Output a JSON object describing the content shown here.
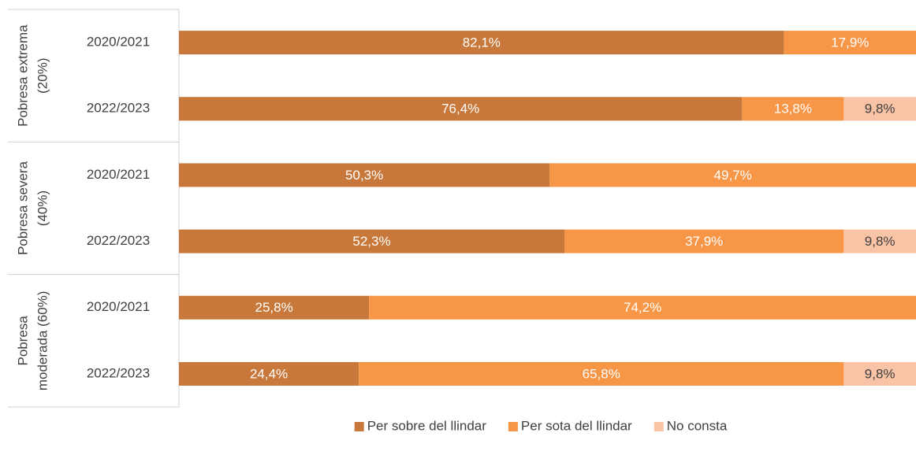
{
  "chart_data": {
    "type": "stacked-barh",
    "groups": [
      {
        "label": [
          "Pobresa extrema",
          "(20%)"
        ],
        "categories": [
          "2020/2021",
          "2022/2023"
        ]
      },
      {
        "label": [
          "Pobresa severa",
          "(40%)"
        ],
        "categories": [
          "2020/2021",
          "2022/2023"
        ]
      },
      {
        "label": [
          "Pobresa",
          "moderada (60%)"
        ],
        "categories": [
          "2020/2021",
          "2022/2023"
        ]
      }
    ],
    "series": [
      {
        "name": "Per sobre del llindar",
        "color": "#C8783A",
        "label_color": "#ffffff",
        "values": [
          82.1,
          76.4,
          50.3,
          52.3,
          25.8,
          24.4
        ],
        "value_labels": [
          "82,1%",
          "76,4%",
          "50,3%",
          "52,3%",
          "25,8%",
          "24,4%"
        ]
      },
      {
        "name": "Per sota del llindar",
        "color": "#F79646",
        "label_color": "#ffffff",
        "values": [
          17.9,
          13.8,
          49.7,
          37.9,
          74.2,
          65.8
        ],
        "value_labels": [
          "17,9%",
          "13,8%",
          "49,7%",
          "37,9%",
          "74,2%",
          "65,8%"
        ]
      },
      {
        "name": "No consta",
        "color": "#F9C3A6",
        "label_color": "#404040",
        "values": [
          null,
          9.8,
          null,
          9.8,
          null,
          9.8
        ],
        "value_labels": [
          null,
          "9,8%",
          null,
          "9,8%",
          null,
          "9,8%"
        ]
      }
    ],
    "xlim": [
      0,
      100
    ]
  }
}
